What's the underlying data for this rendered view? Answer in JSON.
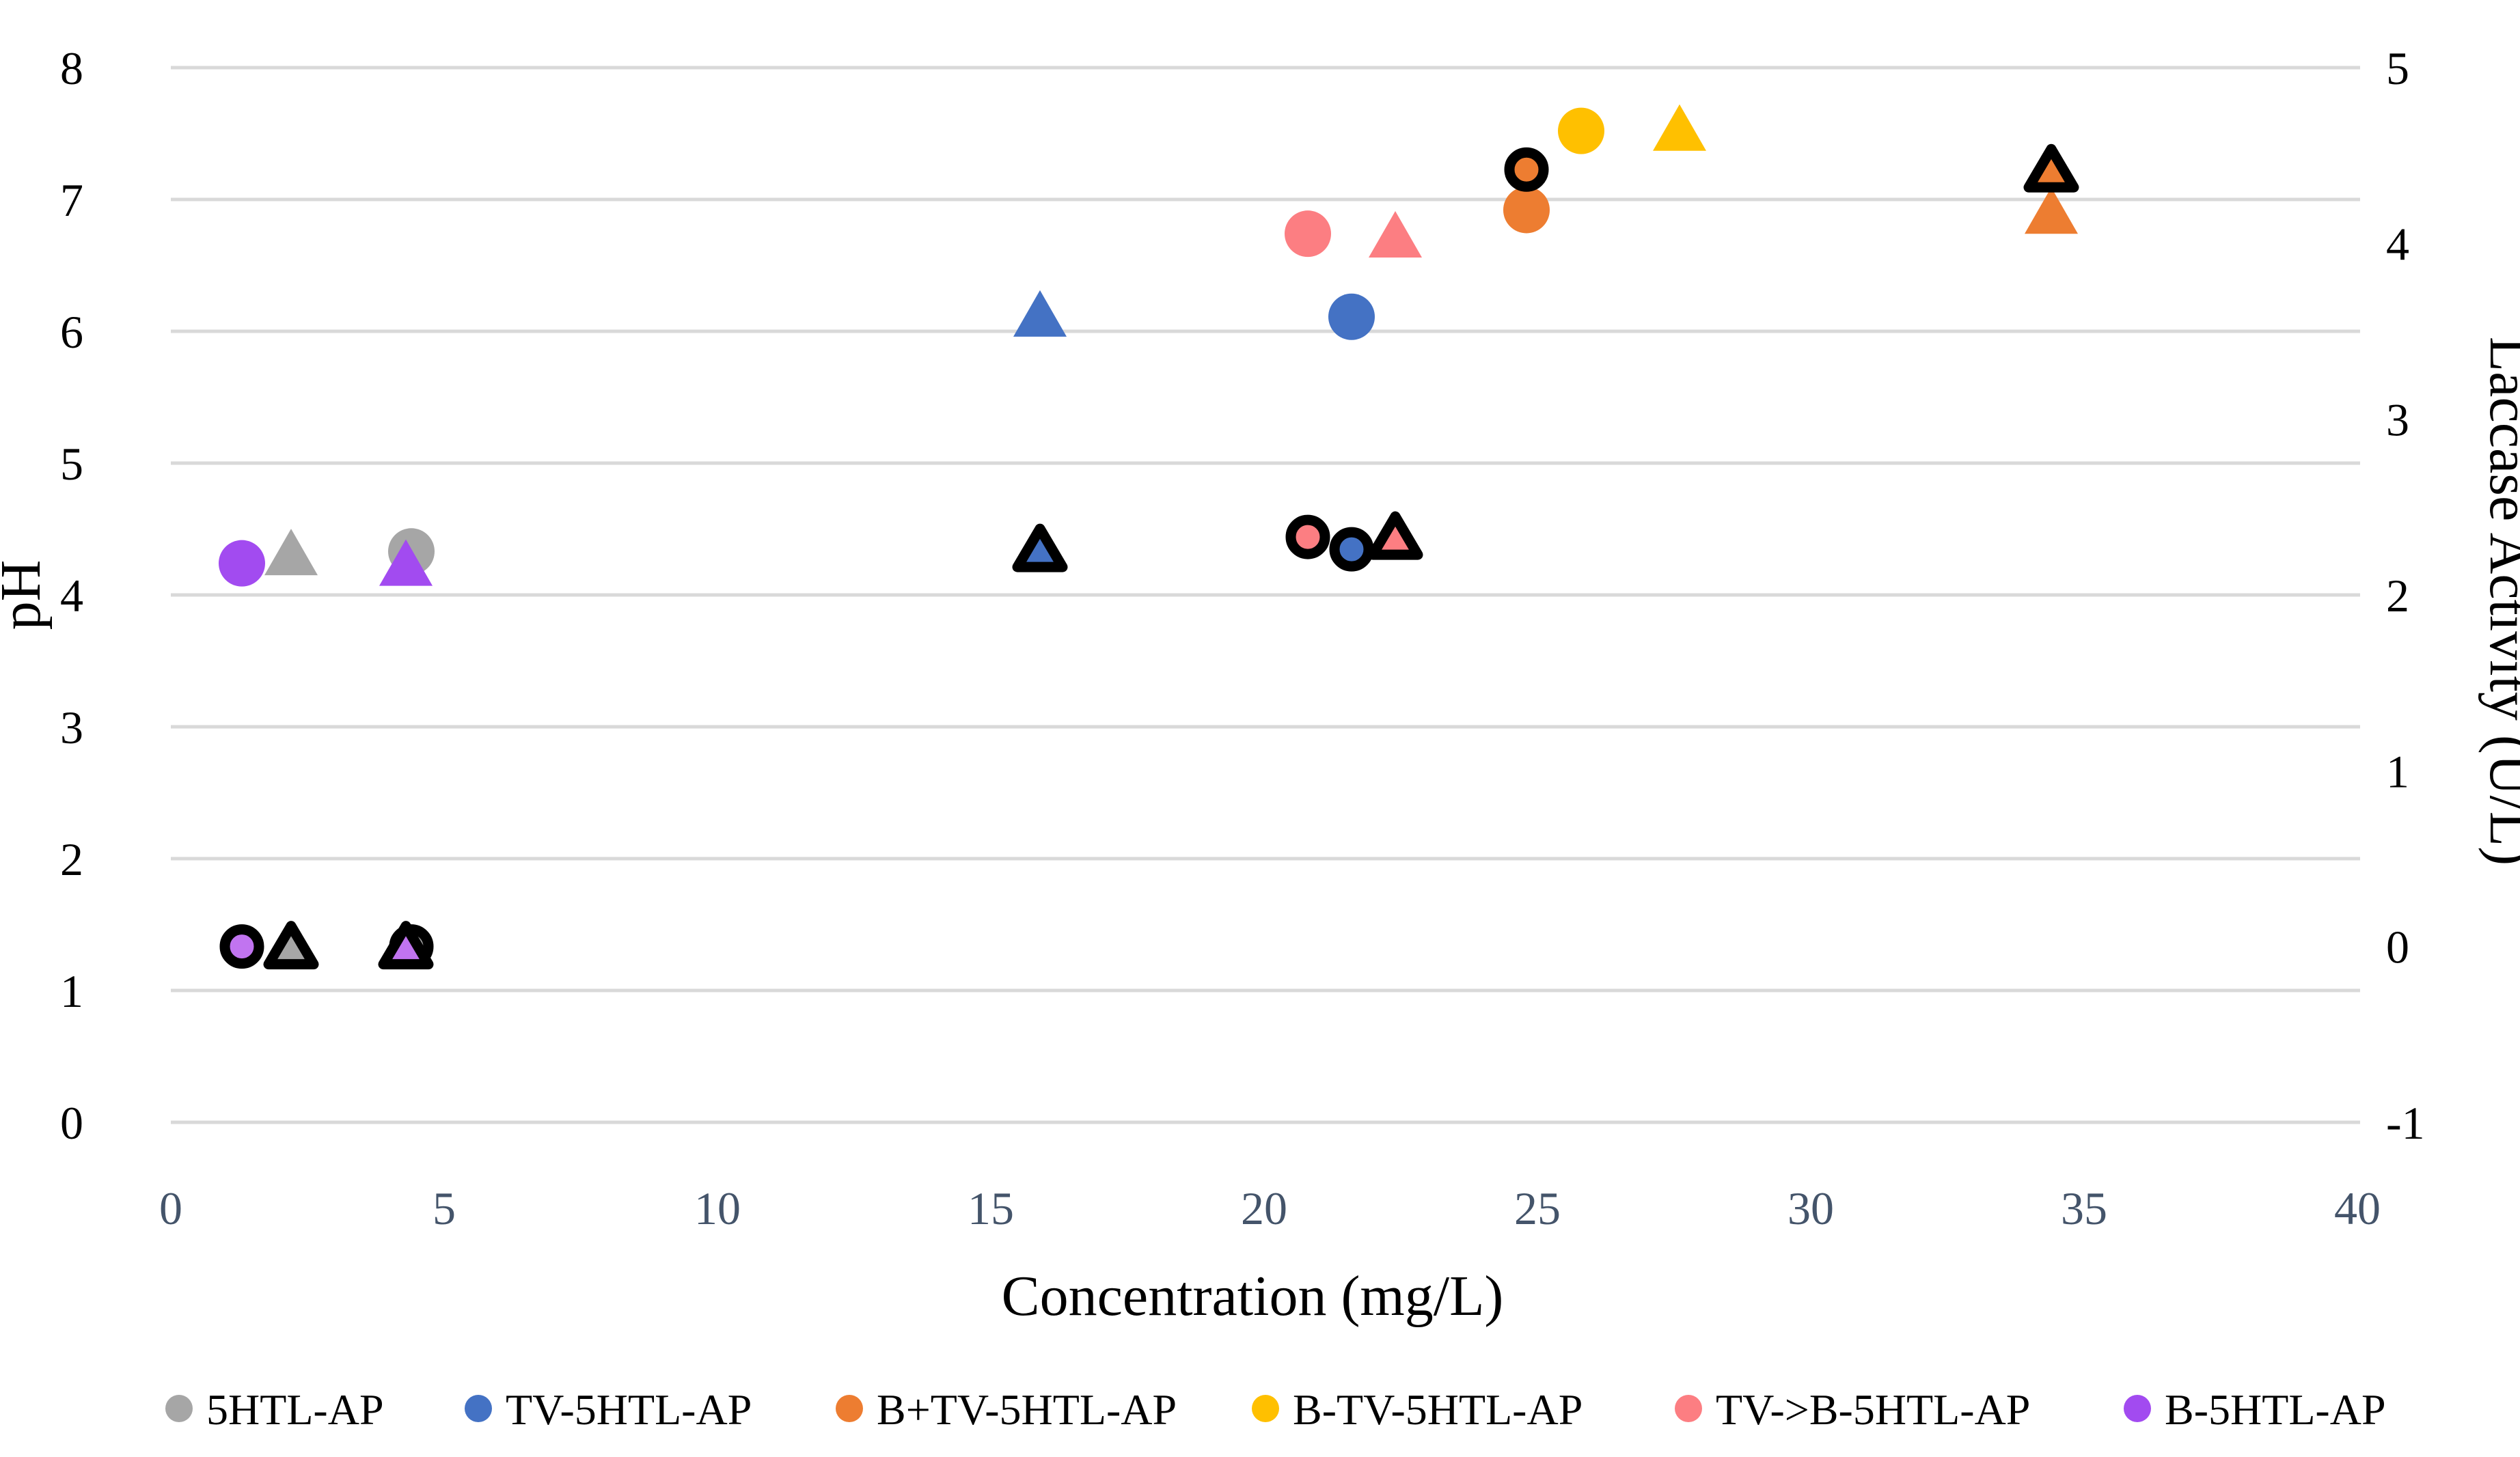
{
  "chart_data": {
    "type": "scatter",
    "title": "",
    "xlabel": "Concentration (mg/L)",
    "ylabel_left": "pH",
    "ylabel_right": "Laccase Activity (U/L)",
    "xlim": [
      0,
      40
    ],
    "ylim_left": [
      0,
      8
    ],
    "ylim_right": [
      -1,
      5
    ],
    "xticks": [
      0,
      5,
      10,
      15,
      20,
      25,
      30,
      35,
      40
    ],
    "yticks_left": [
      0,
      1,
      2,
      3,
      4,
      5,
      6,
      7,
      8
    ],
    "yticks_right": [
      5,
      4,
      3,
      2,
      1,
      0,
      -1
    ],
    "grid": "horizontal-only",
    "legend_position": "bottom",
    "marker_note": "plain markers = pH (left axis); black-outlined markers = laccase activity (right axis); circles and triangles are two replicate series per sample",
    "series": [
      {
        "name": "5HTL-AP",
        "color": "#A6A6A6",
        "laccase_fill": "#A6A6A6",
        "ph_points": [
          {
            "marker": "circle",
            "x": 4.4,
            "ph": 4.33
          },
          {
            "marker": "triangle",
            "x": 2.2,
            "ph": 4.31
          }
        ],
        "laccase_points": [
          {
            "marker": "circle",
            "x": 4.4,
            "activity": 0.0
          },
          {
            "marker": "triangle",
            "x": 2.2,
            "activity": 0.0
          }
        ]
      },
      {
        "name": "TV-5HTL-AP",
        "color": "#4472C4",
        "laccase_fill": "#4472C4",
        "ph_points": [
          {
            "marker": "circle",
            "x": 21.6,
            "ph": 6.11
          },
          {
            "marker": "triangle",
            "x": 15.9,
            "ph": 6.12
          }
        ],
        "laccase_points": [
          {
            "marker": "circle",
            "x": 21.6,
            "activity": 2.26
          },
          {
            "marker": "triangle",
            "x": 15.9,
            "activity": 2.26
          }
        ]
      },
      {
        "name": "B+TV-5HTL-AP",
        "color": "#ED7D31",
        "laccase_fill": "#ED7D31",
        "ph_points": [
          {
            "marker": "circle",
            "x": 24.8,
            "ph": 6.92
          },
          {
            "marker": "triangle",
            "x": 34.4,
            "ph": 6.9
          }
        ],
        "laccase_points": [
          {
            "marker": "circle",
            "x": 24.8,
            "activity": 4.42
          },
          {
            "marker": "triangle",
            "x": 34.4,
            "activity": 4.42
          }
        ]
      },
      {
        "name": "B-TV-5HTL-AP",
        "color": "#FFC000",
        "laccase_fill": "#FFC000",
        "ph_points": [
          {
            "marker": "circle",
            "x": 25.8,
            "ph": 7.52
          },
          {
            "marker": "triangle",
            "x": 27.6,
            "ph": 7.53
          }
        ],
        "laccase_points": []
      },
      {
        "name": "TV->B-5HTL-AP",
        "color": "#FC7E82",
        "laccase_fill": "#FC7E82",
        "ph_points": [
          {
            "marker": "circle",
            "x": 20.8,
            "ph": 6.74
          },
          {
            "marker": "triangle",
            "x": 22.4,
            "ph": 6.72
          }
        ],
        "laccase_points": [
          {
            "marker": "circle",
            "x": 20.8,
            "activity": 2.33
          },
          {
            "marker": "triangle",
            "x": 22.4,
            "activity": 2.33
          }
        ]
      },
      {
        "name": "B-5HTL-AP",
        "color": "#A24BF0",
        "laccase_fill": "#C174F0",
        "ph_points": [
          {
            "marker": "circle",
            "x": 1.3,
            "ph": 4.24
          },
          {
            "marker": "triangle",
            "x": 4.3,
            "ph": 4.23
          }
        ],
        "laccase_points": [
          {
            "marker": "circle",
            "x": 1.3,
            "activity": 0.0
          },
          {
            "marker": "triangle",
            "x": 4.3,
            "activity": 0.0
          }
        ]
      }
    ],
    "colors": {
      "gridline": "#D9D9D9",
      "x_tick_label": "#44546A",
      "y_tick_label": "#000000",
      "marker_outline": "#000000"
    }
  }
}
